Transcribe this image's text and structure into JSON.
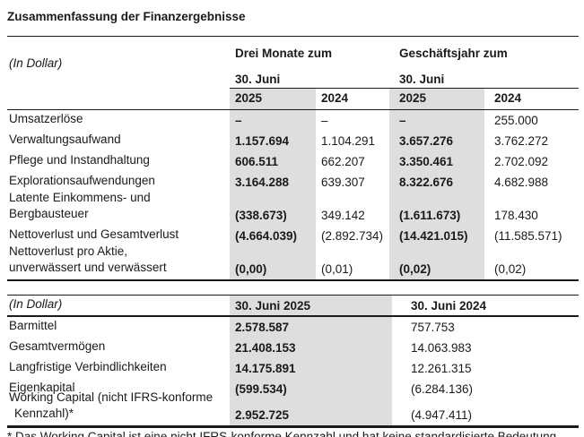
{
  "page": {
    "title": "Zusammenfassung der Finanzergebnisse"
  },
  "colors": {
    "shaded_column": "#dedede",
    "text": "#1a1a1a"
  },
  "income_table": {
    "unit_label": "(In Dollar)",
    "group_headers": [
      {
        "label": "Drei Monate zum",
        "sub": "30. Juni"
      },
      {
        "label": "Geschäftsjahr zum",
        "sub": "30. Juni"
      }
    ],
    "year_headers": [
      "2025",
      "2024",
      "2025",
      "2024"
    ],
    "rows": [
      {
        "label": "Umsatzerlöse",
        "values": [
          "–",
          "–",
          "–",
          "255.000"
        ]
      },
      {
        "label": "Verwaltungsaufwand",
        "values": [
          "1.157.694",
          "1.104.291",
          "3.657.276",
          "3.762.272"
        ]
      },
      {
        "label": "Pflege und Instandhaltung",
        "values": [
          "606.511",
          "662.207",
          "3.350.461",
          "2.702.092"
        ]
      },
      {
        "label": "Explorationsaufwendungen",
        "values": [
          "3.164.288",
          "639.307",
          "8.322.676",
          "4.682.988"
        ]
      },
      {
        "label": "Latente Einkommens- und Bergbausteuer",
        "values": [
          "(338.673)",
          "349.142",
          "(1.611.673)",
          "178.430"
        ]
      },
      {
        "label": "Nettoverlust und Gesamtverlust",
        "values": [
          "(4.664.039)",
          "(2.892.734)",
          "(14.421.015)",
          "(11.585.571)"
        ]
      },
      {
        "label": "Nettoverlust pro Aktie, unverwässert und verwässert",
        "values": [
          "(0,00)",
          "(0,01)",
          "(0,02)",
          "(0,02)"
        ]
      }
    ]
  },
  "balance_table": {
    "unit_label": "(In Dollar)",
    "column_headers": [
      "30. Juni 2025",
      "30. Juni 2024"
    ],
    "rows": [
      {
        "label": "Barmittel",
        "values": [
          "2.578.587",
          "757.753"
        ]
      },
      {
        "label": "Gesamtvermögen",
        "values": [
          "21.408.153",
          "14.063.983"
        ]
      },
      {
        "label": "Langfristige Verbindlichkeiten",
        "values": [
          "14.175.891",
          "12.261.315"
        ]
      },
      {
        "label": "Eigenkapital",
        "values": [
          "(599.534)",
          "(6.284.136)"
        ]
      },
      {
        "label": "Working Capital (nicht IFRS-konforme Kennzahl)*",
        "values": [
          "2.952.725",
          "(4.947.411)"
        ]
      }
    ]
  },
  "clipped_footnote_text": "* Das Working Capital ist eine nicht IFRS-konforme Kennzahl und hat keine standardisierte Bedeutung gemäß den IFRS-Rechnungslegungsvorschriften der Gesellschaft."
}
